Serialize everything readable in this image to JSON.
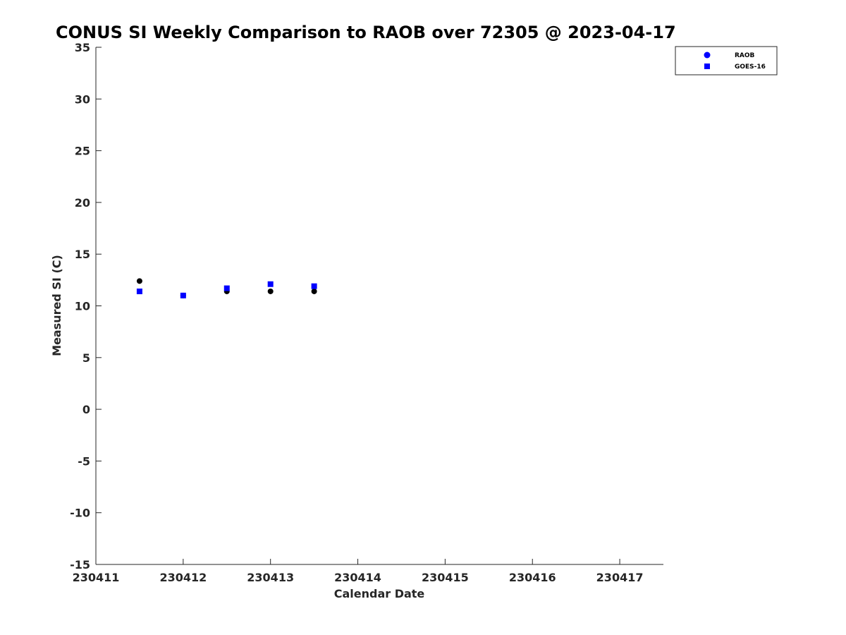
{
  "chart_data": {
    "type": "scatter",
    "title": "CONUS SI Weekly Comparison to RAOB over 72305 @ 2023-04-17",
    "xlabel": "Calendar Date",
    "ylabel": "Measured SI (C)",
    "xlim": [
      "2023-04-11",
      "2023-04-17 12:00"
    ],
    "ylim": [
      -15,
      35
    ],
    "x_ticks": [
      "230411",
      "230412",
      "230413",
      "230414",
      "230415",
      "230416",
      "230417"
    ],
    "y_ticks": [
      "35",
      "30",
      "25",
      "20",
      "15",
      "10",
      "5",
      "0",
      "-5",
      "-10",
      "-15"
    ],
    "grid": false,
    "legend_position": "top-right, outside plot",
    "series": [
      {
        "name": "RAOB",
        "marker": "circle",
        "color": "#000000",
        "legend_color": "#0000ff",
        "x": [
          "2023-04-11 12:00",
          "2023-04-12 00:00",
          "2023-04-12 12:00",
          "2023-04-13 00:00",
          "2023-04-13 12:00"
        ],
        "y": [
          12.4,
          11.0,
          11.4,
          11.4,
          11.4
        ]
      },
      {
        "name": "GOES-16",
        "marker": "square",
        "color": "#0000ff",
        "legend_color": "#0000ff",
        "x": [
          "2023-04-11 12:00",
          "2023-04-12 00:00",
          "2023-04-12 12:00",
          "2023-04-13 00:00",
          "2023-04-13 12:00"
        ],
        "y": [
          11.4,
          11.0,
          11.7,
          12.1,
          11.9
        ]
      }
    ]
  }
}
